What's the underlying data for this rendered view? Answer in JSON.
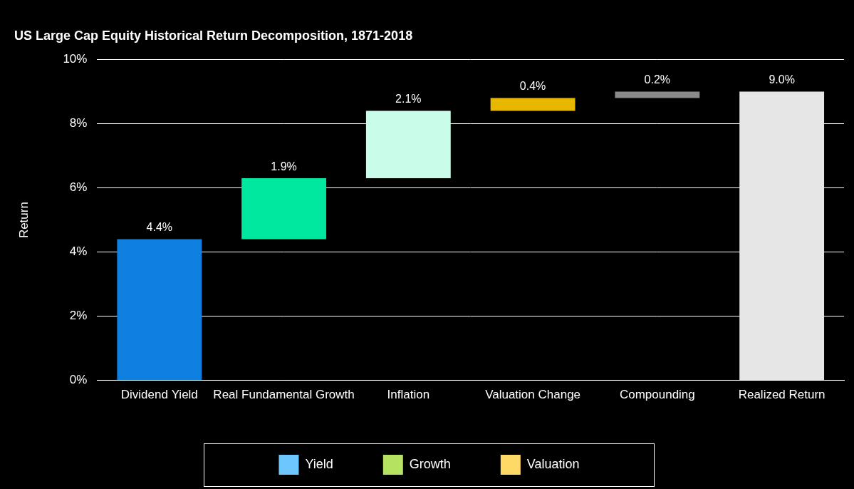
{
  "chart_data": {
    "type": "waterfall",
    "title": "US Large Cap Equity Historical Return Decomposition, 1871-2018",
    "y_label": "Return",
    "categories": [
      "Dividend Yield",
      "Real Fundamental Growth",
      "Inflation",
      "Valuation Change",
      "Compounding",
      "Realized Return"
    ],
    "values": [
      4.4,
      1.9,
      2.1,
      0.4,
      0.2,
      9.0
    ],
    "value_labels": [
      "4.4%",
      "1.9%",
      "2.1%",
      "0.4%",
      "0.2%",
      "9.0%"
    ],
    "colors": [
      "#0f7fe0",
      "#00e89f",
      "#c9fde9",
      "#e8b800",
      "#8a8a8a",
      "#e6e6e6"
    ],
    "ylim": [
      0,
      10
    ],
    "yticks": [
      {
        "value": 0,
        "label": "0%"
      },
      {
        "value": 2,
        "label": "2%"
      },
      {
        "value": 4,
        "label": "4%"
      },
      {
        "value": 6,
        "label": "6%"
      },
      {
        "value": 8,
        "label": "8%"
      },
      {
        "value": 10,
        "label": "10%"
      }
    ],
    "grid": true,
    "data_labels": true,
    "legend": "bottom",
    "legend_entries": [
      {
        "name": "Yield",
        "color": "#6ec6ff"
      },
      {
        "name": "Growth",
        "color": "#b5e361"
      },
      {
        "name": "Valuation",
        "color": "#ffd966"
      }
    ]
  }
}
